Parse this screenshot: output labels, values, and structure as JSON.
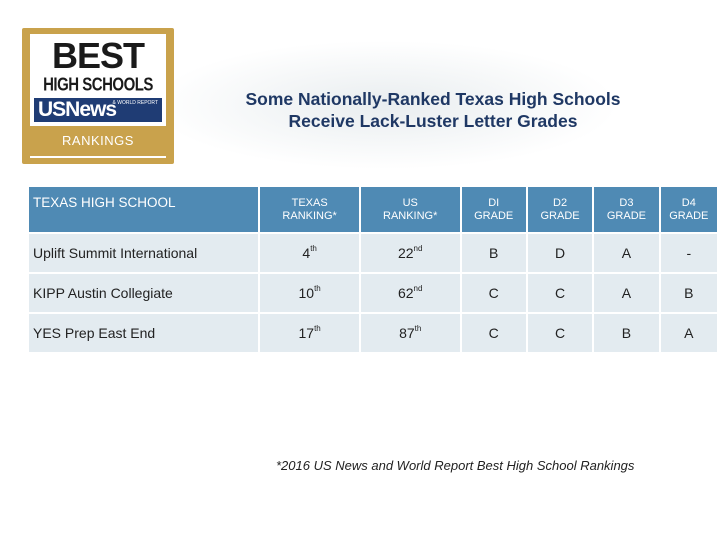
{
  "logo": {
    "line1": "BEST",
    "line2": "HIGH SCHOOLS",
    "brand": "USNews",
    "tagline": "& WORLD REPORT",
    "badge": "RANKINGS"
  },
  "title": {
    "line1": "Some Nationally-Ranked Texas High Schools",
    "line2": "Receive Lack-Luster Letter Grades"
  },
  "table": {
    "headers": {
      "school": "TEXAS HIGH SCHOOL",
      "texas_rank_1": "TEXAS",
      "texas_rank_2": "RANKING*",
      "us_rank_1": "US",
      "us_rank_2": "RANKING*",
      "d1_1": "DI",
      "d1_2": "GRADE",
      "d2_1": "D2",
      "d2_2": "GRADE",
      "d3_1": "D3",
      "d3_2": "GRADE",
      "d4_1": "D4",
      "d4_2": "GRADE"
    },
    "rows": [
      {
        "school": "Uplift Summit International",
        "tx_num": "4",
        "tx_suf": "th",
        "us_num": "22",
        "us_suf": "nd",
        "d1": "B",
        "d2": "D",
        "d3": "A",
        "d4": "-"
      },
      {
        "school": "KIPP Austin Collegiate",
        "tx_num": "10",
        "tx_suf": "th",
        "us_num": "62",
        "us_suf": "nd",
        "d1": "C",
        "d2": "C",
        "d3": "A",
        "d4": "B"
      },
      {
        "school": "YES Prep East End",
        "tx_num": "17",
        "tx_suf": "th",
        "us_num": "87",
        "us_suf": "th",
        "d1": "C",
        "d2": "C",
        "d3": "B",
        "d4": "A"
      }
    ]
  },
  "footnote": "*2016 US News and World Report Best High School Rankings",
  "colors": {
    "header_bg": "#4f8ab4",
    "cell_bg": "#e3ebf0",
    "title": "#1f3864",
    "logo_gold": "#c9a24c",
    "logo_navy": "#1f3c74"
  }
}
